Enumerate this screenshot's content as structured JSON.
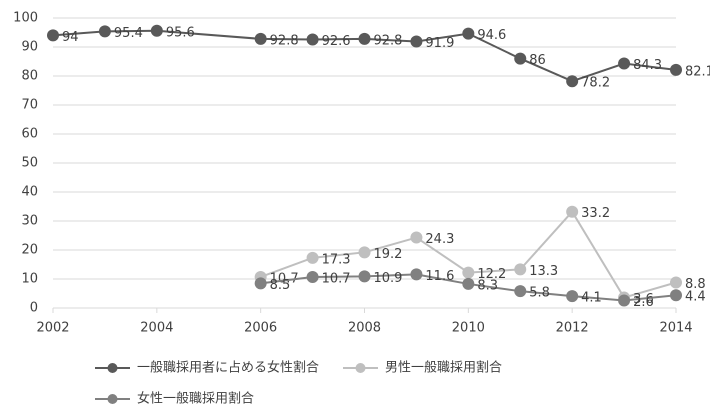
{
  "chart_data": {
    "type": "line",
    "xlim": [
      2002,
      2014
    ],
    "xticks": [
      2002,
      2004,
      2006,
      2008,
      2010,
      2012,
      2014
    ],
    "ylim": [
      0,
      100
    ],
    "yticks": [
      0,
      10,
      20,
      30,
      40,
      50,
      60,
      70,
      80,
      90,
      100
    ],
    "grid": true,
    "legend": "bottom",
    "series": [
      {
        "name": "一般職採用者に占める女性割合",
        "color": "#595959",
        "x": [
          2002,
          2003,
          2004,
          2006,
          2007,
          2008,
          2009,
          2010,
          2011,
          2012,
          2013,
          2014
        ],
        "values": [
          94,
          95.4,
          95.6,
          92.8,
          92.6,
          92.8,
          91.9,
          94.6,
          86,
          78.2,
          84.3,
          82.1
        ]
      },
      {
        "name": "男性一般職採用割合",
        "color": "#bfbfbf",
        "x": [
          2006,
          2007,
          2008,
          2009,
          2010,
          2011,
          2012,
          2013,
          2014
        ],
        "values": [
          10.7,
          17.3,
          19.2,
          24.3,
          12.2,
          13.3,
          33.2,
          3.6,
          8.8
        ]
      },
      {
        "name": "女性一般職採用割合",
        "color": "#808080",
        "x": [
          2006,
          2007,
          2008,
          2009,
          2010,
          2011,
          2012,
          2013,
          2014
        ],
        "values": [
          8.5,
          10.7,
          10.9,
          11.6,
          8.3,
          5.8,
          4.1,
          2.6,
          4.4
        ]
      }
    ]
  }
}
